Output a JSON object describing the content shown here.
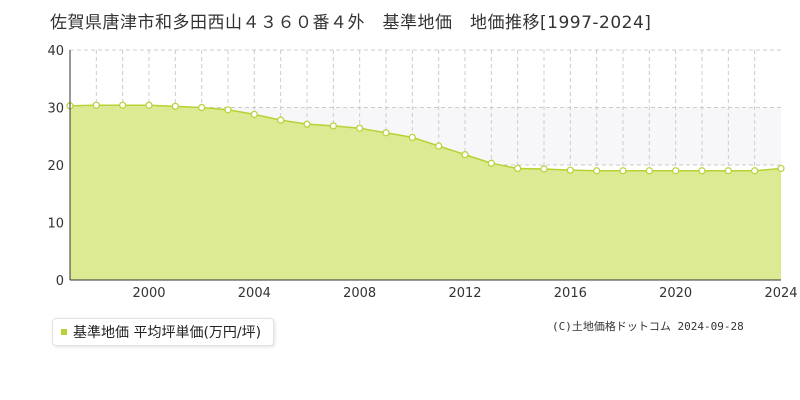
{
  "title": "佐賀県唐津市和多田西山４３６０番４外　基準地価　地価推移[1997-2024]",
  "legend": {
    "label": "基準地価 平均坪単価(万円/坪)",
    "color": "#b5d334"
  },
  "credit": "(C)土地価格ドットコム 2024-09-28",
  "colors": {
    "area_fill": "#dceb93",
    "line": "#b5d334",
    "band_fill": "#f7f7f9",
    "grid": "#cccccc",
    "marker_fill": "#ffffff"
  },
  "chart_data": {
    "type": "area",
    "title": "",
    "xlabel": "",
    "ylabel": "",
    "xlim": [
      1997,
      2024
    ],
    "ylim": [
      0,
      40
    ],
    "x_ticks": [
      2000,
      2004,
      2008,
      2012,
      2016,
      2020,
      2024
    ],
    "y_ticks": [
      0,
      10,
      20,
      30,
      40
    ],
    "grid": true,
    "legend_position": "bottom-left",
    "band": [
      20,
      30
    ],
    "x": [
      1997,
      1998,
      1999,
      2000,
      2001,
      2002,
      2003,
      2004,
      2005,
      2006,
      2007,
      2008,
      2009,
      2010,
      2011,
      2012,
      2013,
      2014,
      2015,
      2016,
      2017,
      2018,
      2019,
      2020,
      2021,
      2022,
      2023,
      2024
    ],
    "series": [
      {
        "name": "基準地価 平均坪単価(万円/坪)",
        "values": [
          30.3,
          30.4,
          30.4,
          30.4,
          30.2,
          30.0,
          29.6,
          28.8,
          27.8,
          27.1,
          26.8,
          26.4,
          25.6,
          24.8,
          23.3,
          21.8,
          20.3,
          19.4,
          19.3,
          19.1,
          19.0,
          19.0,
          19.0,
          19.0,
          19.0,
          19.0,
          19.0,
          19.4
        ]
      }
    ]
  }
}
